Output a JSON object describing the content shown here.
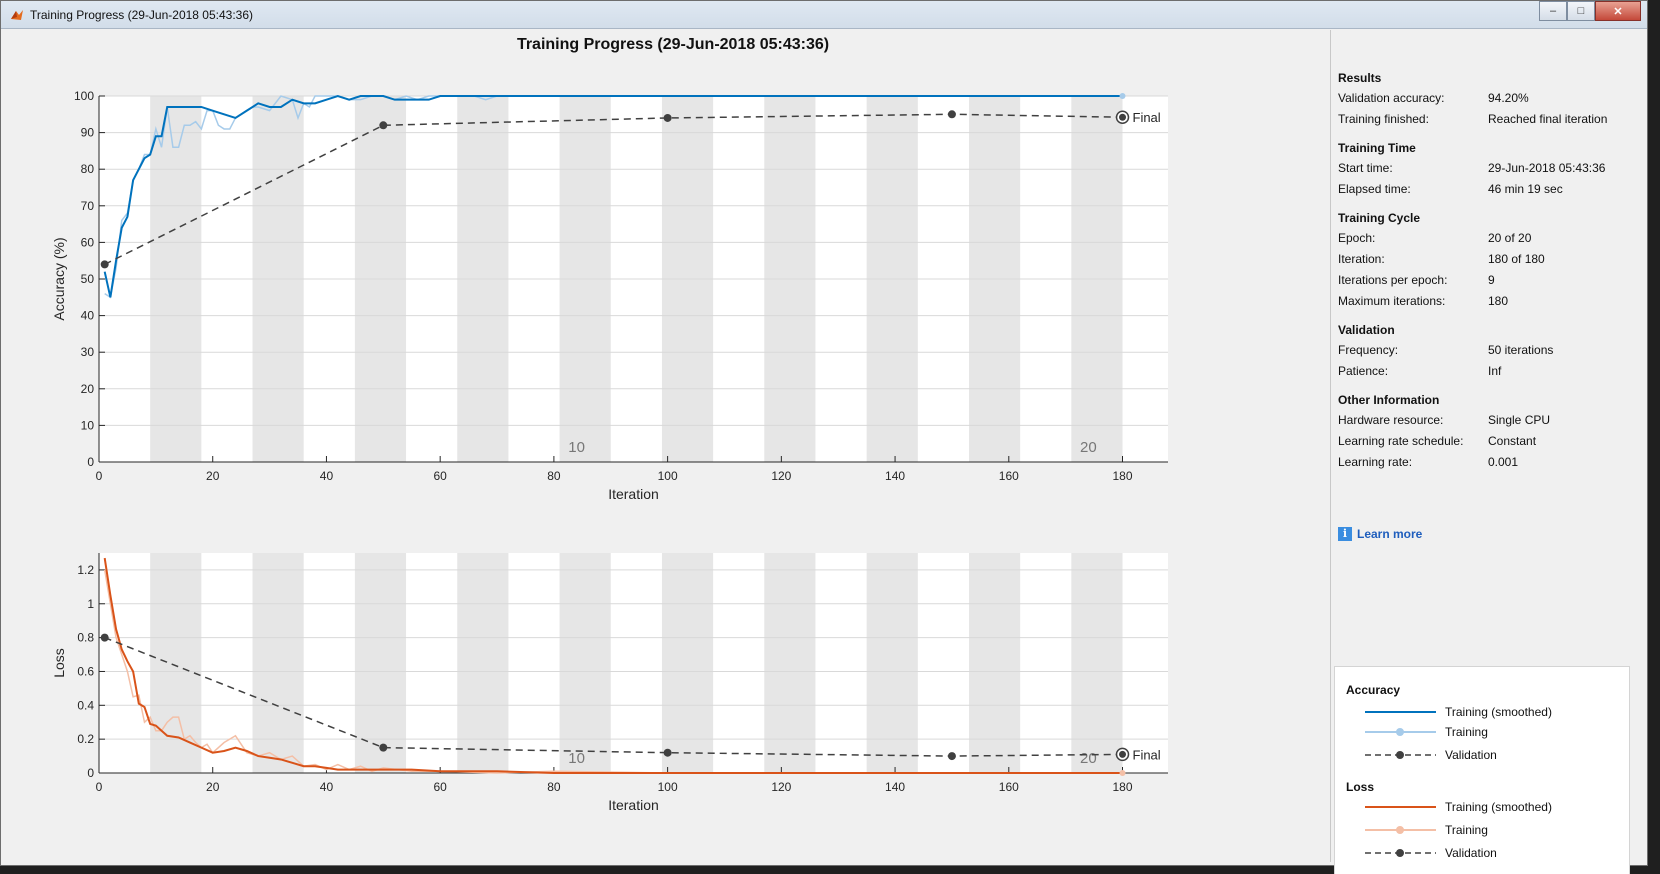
{
  "window": {
    "title": "Training Progress (29-Jun-2018 05:43:36)",
    "buttons": {
      "minimize": "–",
      "maximize": "□",
      "close": "✕"
    }
  },
  "main_title": "Training Progress (29-Jun-2018 05:43:36)",
  "info": {
    "sections": [
      {
        "title": "Results",
        "rows": [
          {
            "k": "Validation accuracy:",
            "v": "94.20%"
          },
          {
            "k": "Training finished:",
            "v": "Reached final iteration"
          }
        ]
      },
      {
        "title": "Training Time",
        "rows": [
          {
            "k": "Start time:",
            "v": "29-Jun-2018 05:43:36"
          },
          {
            "k": "Elapsed time:",
            "v": "46 min 19 sec"
          }
        ]
      },
      {
        "title": "Training Cycle",
        "rows": [
          {
            "k": "Epoch:",
            "v": "20 of 20"
          },
          {
            "k": "Iteration:",
            "v": "180 of 180"
          },
          {
            "k": "Iterations per epoch:",
            "v": "9"
          },
          {
            "k": "Maximum iterations:",
            "v": "180"
          }
        ]
      },
      {
        "title": "Validation",
        "rows": [
          {
            "k": "Frequency:",
            "v": "50 iterations"
          },
          {
            "k": "Patience:",
            "v": "Inf"
          }
        ]
      },
      {
        "title": "Other Information",
        "rows": [
          {
            "k": "Hardware resource:",
            "v": "Single CPU"
          },
          {
            "k": "Learning rate schedule:",
            "v": "Constant"
          },
          {
            "k": "Learning rate:",
            "v": "0.001"
          }
        ]
      }
    ],
    "learn_more": "Learn more"
  },
  "legend": {
    "accuracy_title": "Accuracy",
    "loss_title": "Loss",
    "smoothed": "Training (smoothed)",
    "training": "Training",
    "validation": "Validation"
  },
  "colors": {
    "acc_smoothed": "#0072bd",
    "acc_raw": "#a6cbea",
    "loss_smoothed": "#d95319",
    "loss_raw": "#f4bfa6",
    "validation": "#404040",
    "epoch_band": "#e6e6e6"
  },
  "chart_data": [
    {
      "type": "line",
      "xlabel": "Iteration",
      "ylabel": "Accuracy (%)",
      "xlim": [
        0,
        188
      ],
      "ylim": [
        0,
        100
      ],
      "xticks": [
        0,
        20,
        40,
        60,
        80,
        100,
        120,
        140,
        160,
        180
      ],
      "yticks": [
        0,
        10,
        20,
        30,
        40,
        50,
        60,
        70,
        80,
        90,
        100
      ],
      "epoch_labels": [
        {
          "x": 84,
          "text": "10"
        },
        {
          "x": 174,
          "text": "20"
        }
      ],
      "final_label": "Final",
      "series": [
        {
          "name": "Training (smoothed)",
          "x": [
            1,
            2,
            3,
            4,
            5,
            6,
            7,
            8,
            9,
            10,
            11,
            12,
            14,
            16,
            18,
            20,
            22,
            24,
            26,
            28,
            30,
            32,
            34,
            36,
            38,
            40,
            42,
            44,
            46,
            48,
            50,
            52,
            54,
            56,
            58,
            60,
            62,
            64,
            66,
            68,
            70,
            75,
            80,
            100,
            120,
            140,
            160,
            180
          ],
          "y": [
            52,
            45,
            55,
            64,
            67,
            77,
            80,
            83,
            84,
            89,
            89,
            97,
            97,
            97,
            97,
            96,
            95,
            94,
            96,
            98,
            97,
            97,
            99,
            98,
            98,
            99,
            100,
            99,
            100,
            100,
            100,
            99,
            99,
            99,
            99,
            100,
            100,
            100,
            100,
            100,
            100,
            100,
            100,
            100,
            100,
            100,
            100,
            100
          ]
        },
        {
          "name": "Training",
          "x": [
            1,
            2,
            3,
            4,
            5,
            6,
            7,
            8,
            9,
            10,
            11,
            12,
            13,
            14,
            15,
            16,
            17,
            18,
            19,
            20,
            21,
            22,
            23,
            24,
            25,
            26,
            27,
            28,
            30,
            32,
            34,
            35,
            36,
            37,
            38,
            40,
            42,
            44,
            46,
            48,
            50,
            52,
            54,
            56,
            58,
            60,
            62,
            64,
            66,
            68,
            70,
            75,
            80,
            100,
            120,
            140,
            160,
            180
          ],
          "y": [
            46,
            45,
            53,
            66,
            68,
            77,
            80,
            84,
            84,
            91,
            86,
            97,
            86,
            86,
            92,
            92,
            93,
            91,
            96,
            96,
            92,
            91,
            91,
            94,
            95,
            96,
            97,
            97,
            96,
            100,
            99,
            94,
            98,
            97,
            100,
            100,
            100,
            99,
            99,
            100,
            100,
            99,
            100,
            99,
            100,
            100,
            100,
            100,
            100,
            99,
            100,
            100,
            100,
            100,
            100,
            100,
            100,
            100
          ]
        },
        {
          "name": "Validation",
          "x": [
            1,
            50,
            100,
            150,
            180
          ],
          "y": [
            54,
            92,
            94,
            95,
            94.2
          ]
        }
      ]
    },
    {
      "type": "line",
      "xlabel": "Iteration",
      "ylabel": "Loss",
      "xlim": [
        0,
        188
      ],
      "ylim": [
        0,
        1.3
      ],
      "xticks": [
        0,
        20,
        40,
        60,
        80,
        100,
        120,
        140,
        160,
        180
      ],
      "yticks": [
        0,
        0.2,
        0.4,
        0.6,
        0.8,
        1,
        1.2
      ],
      "epoch_labels": [
        {
          "x": 84,
          "text": "10"
        },
        {
          "x": 174,
          "text": "20"
        }
      ],
      "final_label": "Final",
      "series": [
        {
          "name": "Training (smoothed)",
          "x": [
            1,
            2,
            3,
            4,
            5,
            6,
            7,
            8,
            9,
            10,
            11,
            12,
            14,
            16,
            18,
            20,
            22,
            24,
            26,
            28,
            30,
            32,
            34,
            36,
            38,
            40,
            42,
            44,
            46,
            48,
            50,
            55,
            60,
            70,
            80,
            100,
            120,
            140,
            160,
            180
          ],
          "y": [
            1.27,
            1.05,
            0.85,
            0.73,
            0.66,
            0.6,
            0.41,
            0.39,
            0.29,
            0.28,
            0.25,
            0.22,
            0.21,
            0.18,
            0.15,
            0.12,
            0.13,
            0.15,
            0.13,
            0.1,
            0.09,
            0.08,
            0.06,
            0.04,
            0.04,
            0.03,
            0.02,
            0.02,
            0.02,
            0.02,
            0.02,
            0.02,
            0.01,
            0.01,
            0.0,
            0.0,
            0.0,
            0.0,
            0.0,
            0.0
          ]
        },
        {
          "name": "Training",
          "x": [
            1,
            2,
            3,
            4,
            5,
            6,
            7,
            8,
            9,
            10,
            11,
            12,
            13,
            14,
            15,
            16,
            17,
            18,
            19,
            20,
            22,
            24,
            26,
            28,
            30,
            32,
            34,
            36,
            38,
            40,
            42,
            44,
            46,
            48,
            50,
            55,
            60,
            70,
            80,
            100,
            120,
            140,
            160,
            180
          ],
          "y": [
            1.2,
            1.0,
            0.8,
            0.7,
            0.6,
            0.45,
            0.46,
            0.3,
            0.33,
            0.25,
            0.25,
            0.3,
            0.33,
            0.33,
            0.2,
            0.22,
            0.18,
            0.15,
            0.17,
            0.12,
            0.18,
            0.22,
            0.12,
            0.1,
            0.12,
            0.08,
            0.1,
            0.04,
            0.05,
            0.02,
            0.05,
            0.02,
            0.04,
            0.01,
            0.03,
            0.01,
            0.01,
            0.0,
            0.01,
            0.0,
            0.0,
            0.0,
            0.0,
            0.0
          ]
        },
        {
          "name": "Validation",
          "x": [
            1,
            50,
            100,
            150,
            180
          ],
          "y": [
            0.8,
            0.15,
            0.12,
            0.1,
            0.11
          ]
        }
      ]
    }
  ]
}
